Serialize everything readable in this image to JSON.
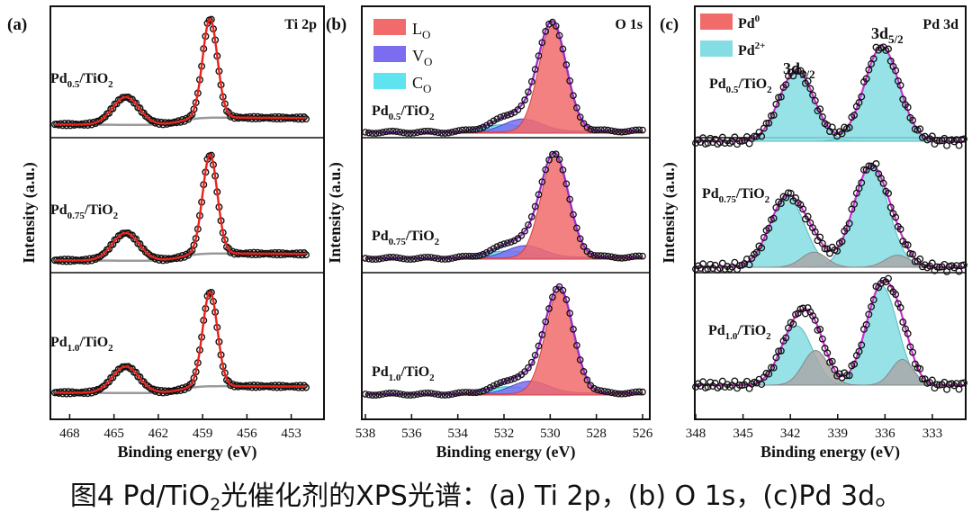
{
  "figure_caption": {
    "prefix": "图4 Pd/TiO",
    "sub": "2",
    "suffix": "光催化剂的XPS光谱：(a) Ti 2p，(b) O 1s，(c)Pd 3d。"
  },
  "chart_data": [
    {
      "type": "line",
      "panel_label": "(a)",
      "title": "Ti 2p",
      "xlabel": "Binding energy (eV)",
      "ylabel": "Intensity (a.u.)",
      "xlim": [
        469,
        452
      ],
      "xticks": [
        468,
        465,
        462,
        459,
        456,
        453
      ],
      "tick_labels": [
        "468",
        "465",
        "462",
        "459",
        "456",
        "453"
      ],
      "stack_levels": [
        1,
        0.5,
        0
      ],
      "samples": [
        {
          "label_main": "Pd",
          "label_sub": "0.5",
          "label_end": "/TiO",
          "label_end_sub": "2",
          "peaks": [
            {
              "center": 458.5,
              "height": 1.0,
              "width": 0.5
            },
            {
              "center": 464.2,
              "height": 0.28,
              "width": 0.9
            }
          ]
        },
        {
          "label_main": "Pd",
          "label_sub": "0.75",
          "label_end": "/TiO",
          "label_end_sub": "2",
          "peaks": [
            {
              "center": 458.5,
              "height": 1.0,
              "width": 0.5
            },
            {
              "center": 464.2,
              "height": 0.28,
              "width": 0.9
            }
          ]
        },
        {
          "label_main": "Pd",
          "label_sub": "1.0",
          "label_end": "/TiO",
          "label_end_sub": "2",
          "peaks": [
            {
              "center": 458.5,
              "height": 1.0,
              "width": 0.5
            },
            {
              "center": 464.2,
              "height": 0.28,
              "width": 0.9
            }
          ]
        }
      ],
      "series": [
        {
          "name": "raw data",
          "color": "#111111"
        },
        {
          "name": "fit",
          "color": "#e8231c"
        },
        {
          "name": "background",
          "color": "#999999"
        }
      ]
    },
    {
      "type": "area",
      "panel_label": "(b)",
      "title": "O 1s",
      "xlabel": "Binding energy (eV)",
      "ylabel": "Intensity (a.u.)",
      "xlim": [
        538,
        526
      ],
      "xticks": [
        538,
        536,
        534,
        532,
        530,
        528,
        526
      ],
      "tick_labels": [
        "538",
        "536",
        "534",
        "532",
        "530",
        "528",
        "526"
      ],
      "stack_levels": [
        1,
        0.5,
        0
      ],
      "legend": [
        {
          "main": "L",
          "sub": "O",
          "color": "#f26b6b"
        },
        {
          "main": "V",
          "sub": "O",
          "color": "#7b6cf0"
        },
        {
          "main": "C",
          "sub": "O",
          "color": "#5fe3ee"
        }
      ],
      "samples": [
        {
          "label_main": "Pd",
          "label_sub": "0.5",
          "label_end": "/TiO",
          "label_end_sub": "2",
          "components": {
            "LO": {
              "center": 529.9,
              "height": 1.0,
              "width": 0.6
            },
            "VO": {
              "center": 531.2,
              "height": 0.12,
              "width": 0.8
            },
            "CO": {
              "center": 532.0,
              "height": 0.07,
              "width": 0.9
            }
          }
        },
        {
          "label_main": "Pd",
          "label_sub": "0.75",
          "label_end": "/TiO",
          "label_end_sub": "2",
          "components": {
            "LO": {
              "center": 529.8,
              "height": 1.0,
              "width": 0.6
            },
            "VO": {
              "center": 531.1,
              "height": 0.12,
              "width": 0.8
            },
            "CO": {
              "center": 531.9,
              "height": 0.07,
              "width": 0.9
            }
          }
        },
        {
          "label_main": "Pd",
          "label_sub": "1.0",
          "label_end": "/TiO",
          "label_end_sub": "2",
          "components": {
            "LO": {
              "center": 529.6,
              "height": 1.0,
              "width": 0.6
            },
            "VO": {
              "center": 530.9,
              "height": 0.12,
              "width": 0.8
            },
            "CO": {
              "center": 531.8,
              "height": 0.07,
              "width": 0.9
            }
          }
        }
      ]
    },
    {
      "type": "area",
      "panel_label": "(c)",
      "title": "Pd 3d",
      "xlabel": "Binding energy (eV)",
      "ylabel": "Intensity (a.u.)",
      "xlim": [
        348,
        331
      ],
      "xticks": [
        348,
        345,
        342,
        339,
        336,
        333
      ],
      "tick_labels": [
        "348",
        "345",
        "342",
        "339",
        "336",
        "333"
      ],
      "stack_levels": [
        1,
        0.5,
        0
      ],
      "legend": [
        {
          "main": "Pd",
          "sup": "0",
          "color": "#f26b6b"
        },
        {
          "main": "Pd",
          "sup": "2+",
          "color": "#84dde3"
        }
      ],
      "annotations": [
        {
          "main": "3d",
          "sub": "3/2"
        },
        {
          "main": "3d",
          "sub": "5/2"
        }
      ],
      "samples": [
        {
          "label_main": "Pd",
          "label_sub": "0.5",
          "label_end": "/TiO",
          "label_end_sub": "2",
          "pd2plus": [
            {
              "center": 341.6,
              "height": 0.75,
              "width": 1.1
            },
            {
              "center": 336.2,
              "height": 1.0,
              "width": 1.1
            }
          ],
          "pd0": []
        },
        {
          "label_main": "Pd",
          "label_sub": "0.75",
          "label_end": "/TiO",
          "label_end_sub": "2",
          "pd2plus": [
            {
              "center": 342.2,
              "height": 0.7,
              "width": 1.1
            },
            {
              "center": 336.9,
              "height": 1.0,
              "width": 1.1
            }
          ],
          "pd0": [
            {
              "center": 340.5,
              "height": 0.15,
              "width": 0.8
            },
            {
              "center": 335.2,
              "height": 0.12,
              "width": 0.8
            }
          ]
        },
        {
          "label_main": "Pd",
          "label_sub": "1.0",
          "label_end": "/TiO",
          "label_end_sub": "2",
          "pd2plus": [
            {
              "center": 341.6,
              "height": 0.6,
              "width": 1.0
            },
            {
              "center": 336.2,
              "height": 1.0,
              "width": 1.0
            }
          ],
          "pd0": [
            {
              "center": 340.4,
              "height": 0.35,
              "width": 0.8
            },
            {
              "center": 334.9,
              "height": 0.26,
              "width": 0.7
            }
          ]
        }
      ]
    }
  ]
}
